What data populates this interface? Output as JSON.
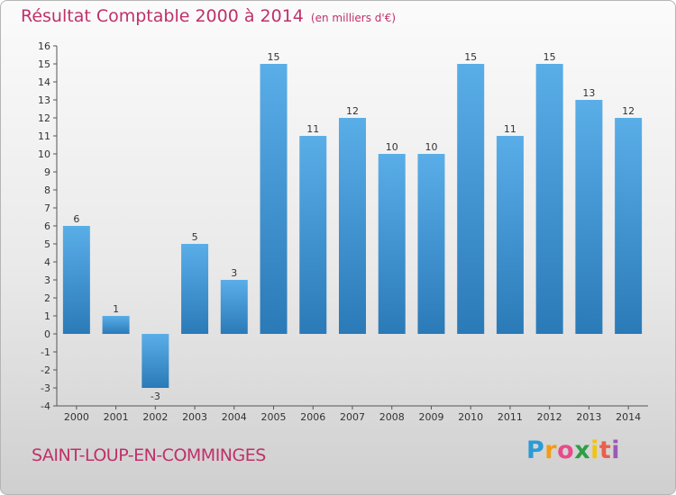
{
  "chart_data": {
    "type": "bar",
    "title": "Résultat Comptable 2000 à 2014",
    "unit_note": "(en milliers d'€)",
    "categories": [
      "2000",
      "2001",
      "2002",
      "2003",
      "2004",
      "2005",
      "2006",
      "2007",
      "2008",
      "2009",
      "2010",
      "2011",
      "2012",
      "2013",
      "2014"
    ],
    "values": [
      6,
      1,
      -3,
      5,
      3,
      15,
      11,
      12,
      10,
      10,
      15,
      11,
      15,
      13,
      12
    ],
    "ylim": [
      -4,
      16
    ],
    "yticks": [
      -4,
      -3,
      -2,
      -1,
      0,
      1,
      2,
      3,
      4,
      5,
      6,
      7,
      8,
      9,
      10,
      11,
      12,
      13,
      14,
      15,
      16
    ],
    "xlabel": "",
    "ylabel": "",
    "grid": false,
    "legend": false
  },
  "commune": "SAINT-LOUP-EN-COMMINGES",
  "brand": {
    "name": "Proxiti",
    "letters": [
      "P",
      "r",
      "o",
      "x",
      "i",
      "t",
      "i"
    ]
  },
  "colors": {
    "title": "#c0306a",
    "bar_top": "#5aaee8",
    "bar_bottom": "#2a7ab8",
    "axis": "#555555"
  }
}
